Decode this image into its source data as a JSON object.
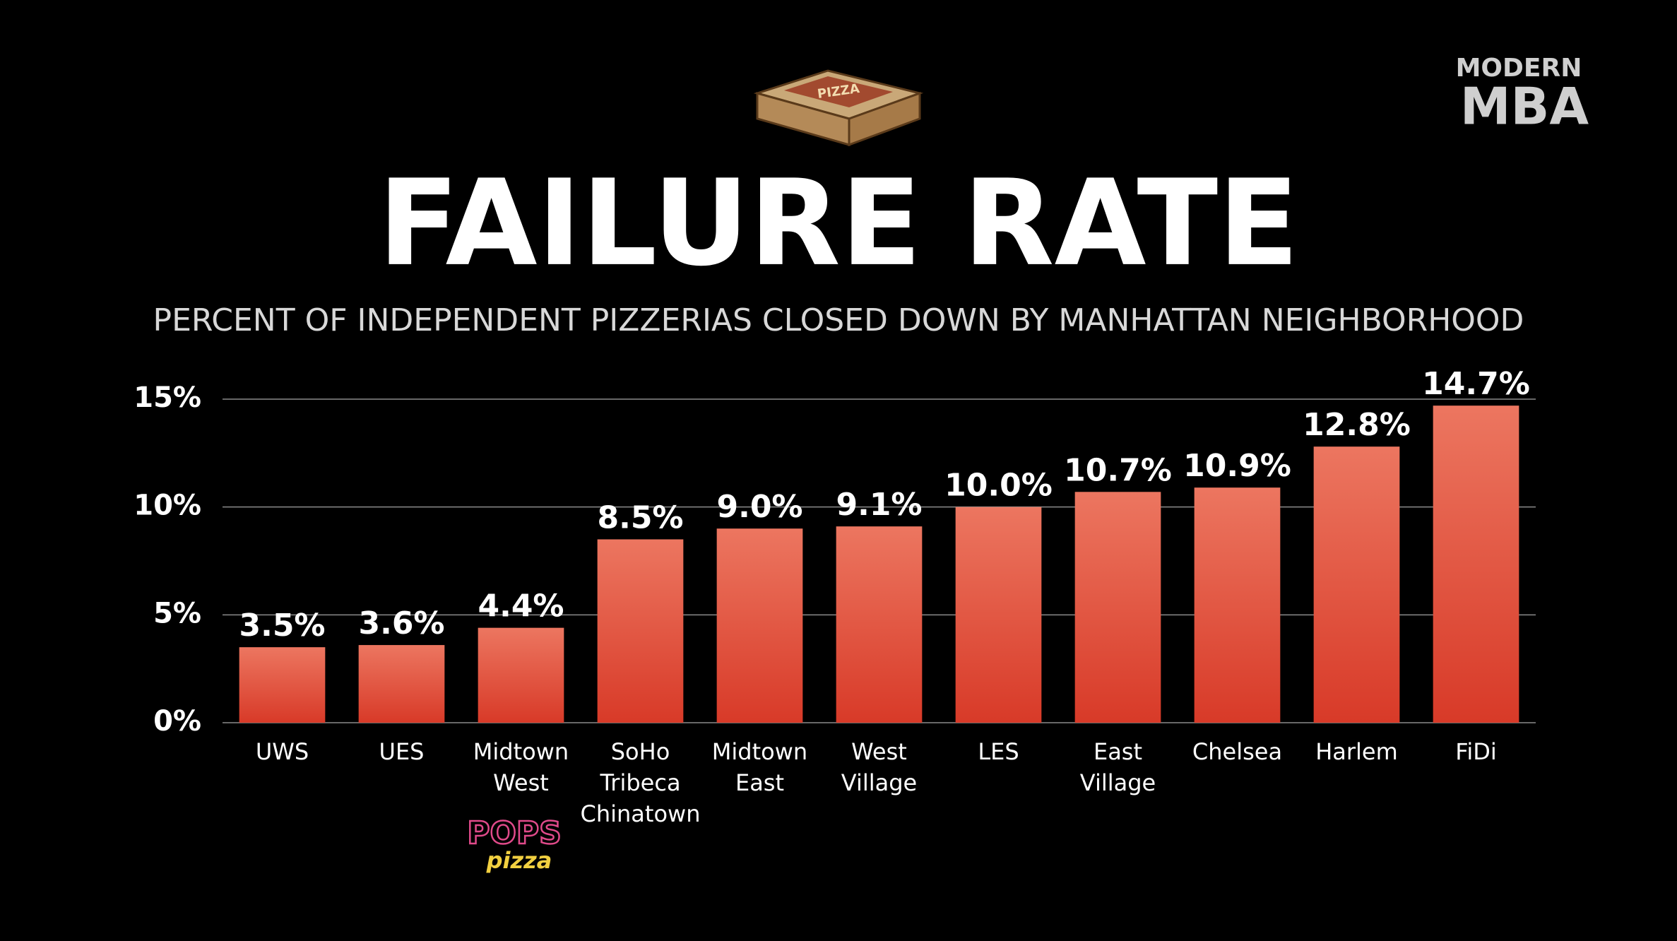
{
  "chart_data": {
    "type": "bar",
    "title": "FAILURE RATE",
    "subtitle": "PERCENT OF INDEPENDENT PIZZERIAS CLOSED DOWN BY MANHATTAN NEIGHBORHOOD",
    "brand": [
      "MODERN",
      "MBA"
    ],
    "annotations": [
      "PIZZA",
      "POPS",
      "pizza"
    ],
    "categories": [
      "UWS",
      "UES",
      "Midtown West",
      "SoHo Tribeca Chinatown",
      "Midtown East",
      "West Village",
      "LES",
      "East Village",
      "Chelsea",
      "Harlem",
      "FiDi"
    ],
    "values": [
      3.5,
      3.6,
      4.4,
      8.5,
      9.0,
      9.1,
      10.0,
      10.7,
      10.9,
      12.8,
      14.7
    ],
    "value_labels": [
      "3.5%",
      "3.6%",
      "4.4%",
      "8.5%",
      "9.0%",
      "9.1%",
      "10.0%",
      "10.7%",
      "10.9%",
      "12.8%",
      "14.7%"
    ],
    "color": "#e0503c",
    "ylim": [
      0,
      15
    ],
    "yticks": [
      {
        "value": 0,
        "label": "0%"
      },
      {
        "value": 5,
        "label": "5%"
      },
      {
        "value": 10,
        "label": "10%"
      },
      {
        "value": 15,
        "label": "15%"
      }
    ],
    "grid": true
  }
}
